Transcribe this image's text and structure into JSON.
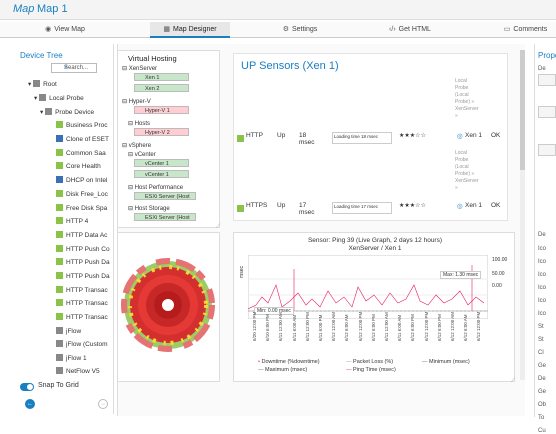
{
  "header": {
    "title_italic": "Map",
    "title": "Map 1"
  },
  "tabs": [
    {
      "label": "View Map",
      "icon": "eye-icon",
      "glyph": "◉"
    },
    {
      "label": "Map Designer",
      "icon": "designer-icon",
      "glyph": "▦",
      "active": true
    },
    {
      "label": "Settings",
      "icon": "gear-icon",
      "glyph": "⚙"
    },
    {
      "label": "Get HTML",
      "icon": "code-icon",
      "glyph": "‹/›"
    },
    {
      "label": "Comments",
      "icon": "comment-icon",
      "glyph": "▭"
    }
  ],
  "device_tree": {
    "title": "Device Tree",
    "search_placeholder": "Search...",
    "nodes": [
      {
        "label": "Root",
        "type": "root"
      },
      {
        "label": "Local Probe",
        "type": "probe"
      },
      {
        "label": "Probe Device",
        "type": "device"
      },
      {
        "label": "Business Proc",
        "status": "green"
      },
      {
        "label": "Clone of ESET",
        "status": "blue"
      },
      {
        "label": "Common Saa",
        "status": "green"
      },
      {
        "label": "Core Health",
        "status": "green"
      },
      {
        "label": "DHCP on Intel",
        "status": "blue"
      },
      {
        "label": "Disk Free_Loc",
        "status": "green"
      },
      {
        "label": "Free Disk Spa",
        "status": "green"
      },
      {
        "label": "HTTP 4",
        "status": "green"
      },
      {
        "label": "HTTP Data Ac",
        "status": "green"
      },
      {
        "label": "HTTP Push Co",
        "status": "green"
      },
      {
        "label": "HTTP Push Da",
        "status": "green"
      },
      {
        "label": "HTTP Push Da",
        "status": "green"
      },
      {
        "label": "HTTP Transac",
        "status": "green"
      },
      {
        "label": "HTTP Transac",
        "status": "green"
      },
      {
        "label": "HTTP Transac",
        "status": "green"
      },
      {
        "label": "jFlow",
        "status": "grey"
      },
      {
        "label": "jFlow (Custom",
        "status": "grey"
      },
      {
        "label": "jFlow 1",
        "status": "grey"
      },
      {
        "label": "NetFlow V5",
        "status": "grey"
      }
    ],
    "snap_label": "Snap To Grid"
  },
  "virtual_hosting": {
    "title": "Virtual Hosting",
    "groups": [
      {
        "label": "XenServer",
        "items": [
          {
            "label": "Xen 1",
            "status": "green"
          },
          {
            "label": "Xen 2",
            "status": "green"
          }
        ]
      },
      {
        "label": "Hyper-V",
        "items": [
          {
            "label": "Hyper-V 1",
            "status": "red"
          }
        ]
      },
      {
        "label": "Hosts",
        "items": [
          {
            "label": "Hyper-V 2",
            "status": "red"
          }
        ]
      },
      {
        "label": "vSphere",
        "items": []
      },
      {
        "label": "vCenter",
        "items": [
          {
            "label": "vCenter 1",
            "status": "green"
          },
          {
            "label": "vCenter 1",
            "status": "green"
          }
        ]
      },
      {
        "label": "Host Performance",
        "items": [
          {
            "label": "ESXi Server (Host",
            "status": "green"
          }
        ]
      },
      {
        "label": "Host Storage",
        "items": [
          {
            "label": "ESXi Server (Host",
            "status": "green"
          }
        ]
      }
    ]
  },
  "sensors": {
    "title": "UP Sensors (Xen 1)",
    "rows": [
      {
        "name": "HTTP",
        "status": "Up",
        "value": "18 msec",
        "spark_label": "Loading time",
        "spark_value": "18 msec",
        "stars": "★★★☆☆",
        "probe": "Local Probe (Local Probe) » XenServer »",
        "device": "Xen 1",
        "result": "OK"
      },
      {
        "name": "HTTPS",
        "status": "Up",
        "value": "17 msec",
        "spark_label": "Loading time",
        "spark_value": "17 msec",
        "stars": "★★★☆☆",
        "probe": "Local Probe (Local Probe) » XenServer »",
        "device": "Xen 1",
        "result": "OK"
      }
    ]
  },
  "graph": {
    "title": "Sensor: Ping 39 (Live Graph, 2 days 12 hours)",
    "subtitle": "XenServer / Xen 1",
    "ylabel": "msec",
    "right_ticks": [
      "100.00",
      "50.00",
      "0.00"
    ],
    "max_label": "Max: 1.30 msec",
    "min_label": "Min: 0.00 msec",
    "x_labels": [
      "6/20 12:00 PM",
      "6/10 6:00 PM",
      "6/11 12:00 AM",
      "6/11 6:00 AM",
      "6/11 12:00 PM",
      "6/11 6:00 PM",
      "6/12 12:00 AM",
      "6/12 6:00 AM",
      "6/12 12:00 PM",
      "6/12 6:00 PM",
      "6/11 12:00 AM",
      "6/11 6:00 AM",
      "6/12 6:00 PM",
      "6/12 12:00 PM",
      "6/12 6:00 PM",
      "6/12 12:00 AM",
      "6/12 6:00 AM",
      "6/12 12:00 PM"
    ],
    "legend": [
      "Downtime (%downtime)",
      "Packet Loss (%)",
      "Minimum (msec)",
      "Maximum (msec)",
      "Ping Time (msec)"
    ]
  },
  "properties": {
    "title": "Prope",
    "items": [
      "De",
      "De",
      "Ico",
      "Ico",
      "Ico",
      "Ico",
      "Ico",
      "Ico",
      "St",
      "St",
      "Cl",
      "Ge",
      "De",
      "Ge",
      "Ob",
      "To",
      "Cu"
    ]
  },
  "colors": {
    "accent": "#1a7fc1",
    "ok": "#8bc34a",
    "error": "#e53935"
  }
}
